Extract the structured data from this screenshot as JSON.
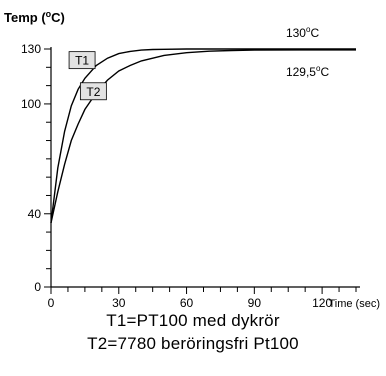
{
  "chart_data": {
    "type": "line",
    "ylabel_prefix": "Temp (",
    "ylabel_unit": "C)",
    "xlabel": "Time (sec)",
    "xlim": [
      0,
      135
    ],
    "ylim": [
      0,
      130
    ],
    "xticks": [
      0,
      30,
      60,
      90,
      120
    ],
    "yticks": [
      0,
      40,
      100,
      130
    ],
    "grid": false,
    "series": [
      {
        "name": "T1",
        "x": [
          0,
          3,
          6,
          9,
          12,
          15,
          20,
          25,
          30,
          35,
          40,
          45,
          50,
          60,
          70,
          90,
          110,
          135
        ],
        "y": [
          35,
          65,
          85,
          99,
          108,
          114,
          121,
          125,
          127.5,
          128.7,
          129.4,
          129.7,
          129.85,
          130,
          130,
          130,
          130,
          130
        ],
        "end_label_value": "130",
        "end_label_unit": "C"
      },
      {
        "name": "T2",
        "x": [
          0,
          3,
          6,
          9,
          12,
          15,
          20,
          25,
          30,
          35,
          40,
          50,
          60,
          70,
          80,
          90,
          110,
          135
        ],
        "y": [
          35,
          52,
          67,
          80,
          89,
          97,
          106,
          113,
          118,
          121,
          123.5,
          126.5,
          128,
          128.8,
          129.2,
          129.4,
          129.5,
          129.5
        ],
        "end_label_value": "129,5",
        "end_label_unit": "C"
      }
    ]
  },
  "captions": [
    "T1=PT100 med dykrör",
    "T2=7780 beröringsfri Pt100"
  ]
}
